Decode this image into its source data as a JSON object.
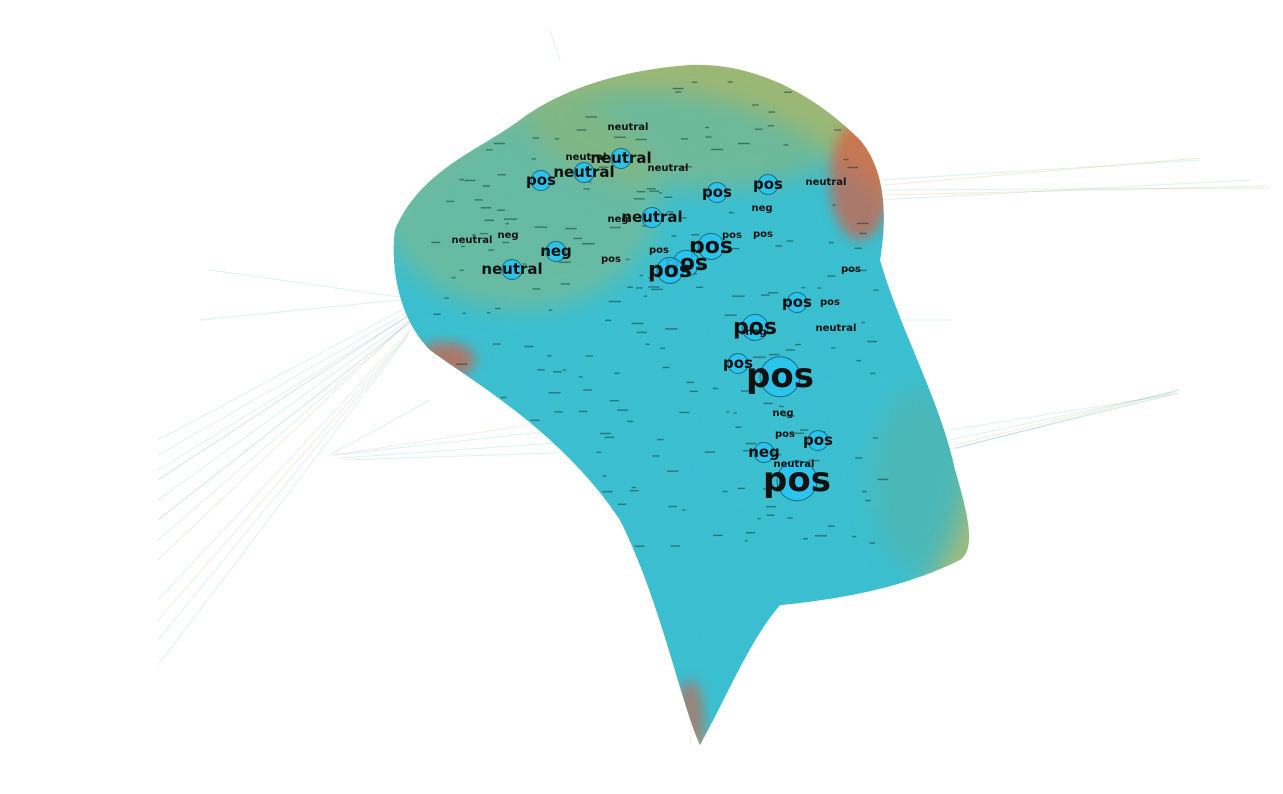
{
  "graph": {
    "colors": {
      "background": "#ffffff",
      "cluster_main": "#2fc1d8",
      "cluster_edge_green": "#3a9a7a",
      "cluster_edge_orange": "#d89a2a",
      "cluster_edge_red": "#e2553a",
      "node_fill": "#29c4ee",
      "node_stroke": "#1b6a86",
      "label": "#111111"
    },
    "node_labels": [
      {
        "text": "pos",
        "size": "xl"
      },
      {
        "text": "pos",
        "size": "xl"
      },
      {
        "text": "pos",
        "size": "l"
      },
      {
        "text": "pos",
        "size": "l"
      },
      {
        "text": "pos",
        "size": "l"
      },
      {
        "text": "pos",
        "size": "l"
      },
      {
        "text": "pos",
        "size": "m"
      },
      {
        "text": "pos",
        "size": "m"
      },
      {
        "text": "pos",
        "size": "m"
      },
      {
        "text": "pos",
        "size": "m"
      },
      {
        "text": "pos",
        "size": "m"
      },
      {
        "text": "pos",
        "size": "m"
      },
      {
        "text": "pos",
        "size": "s"
      },
      {
        "text": "pos",
        "size": "s"
      },
      {
        "text": "pos",
        "size": "s"
      },
      {
        "text": "pos",
        "size": "s"
      },
      {
        "text": "pos",
        "size": "s"
      },
      {
        "text": "pos",
        "size": "s"
      },
      {
        "text": "pos",
        "size": "s"
      },
      {
        "text": "neutral",
        "size": "m"
      },
      {
        "text": "neutral",
        "size": "m"
      },
      {
        "text": "neutral",
        "size": "m"
      },
      {
        "text": "neutral",
        "size": "m"
      },
      {
        "text": "neutral",
        "size": "s"
      },
      {
        "text": "neutral",
        "size": "s"
      },
      {
        "text": "neutral",
        "size": "s"
      },
      {
        "text": "neutral",
        "size": "s"
      },
      {
        "text": "neutral",
        "size": "s"
      },
      {
        "text": "neutral",
        "size": "s"
      },
      {
        "text": "neutral",
        "size": "s"
      },
      {
        "text": "neg",
        "size": "m"
      },
      {
        "text": "neg",
        "size": "m"
      },
      {
        "text": "neg",
        "size": "s"
      },
      {
        "text": "neg",
        "size": "s"
      },
      {
        "text": "neg",
        "size": "s"
      },
      {
        "text": "neg",
        "size": "s"
      },
      {
        "text": "neg",
        "size": "s"
      }
    ]
  }
}
